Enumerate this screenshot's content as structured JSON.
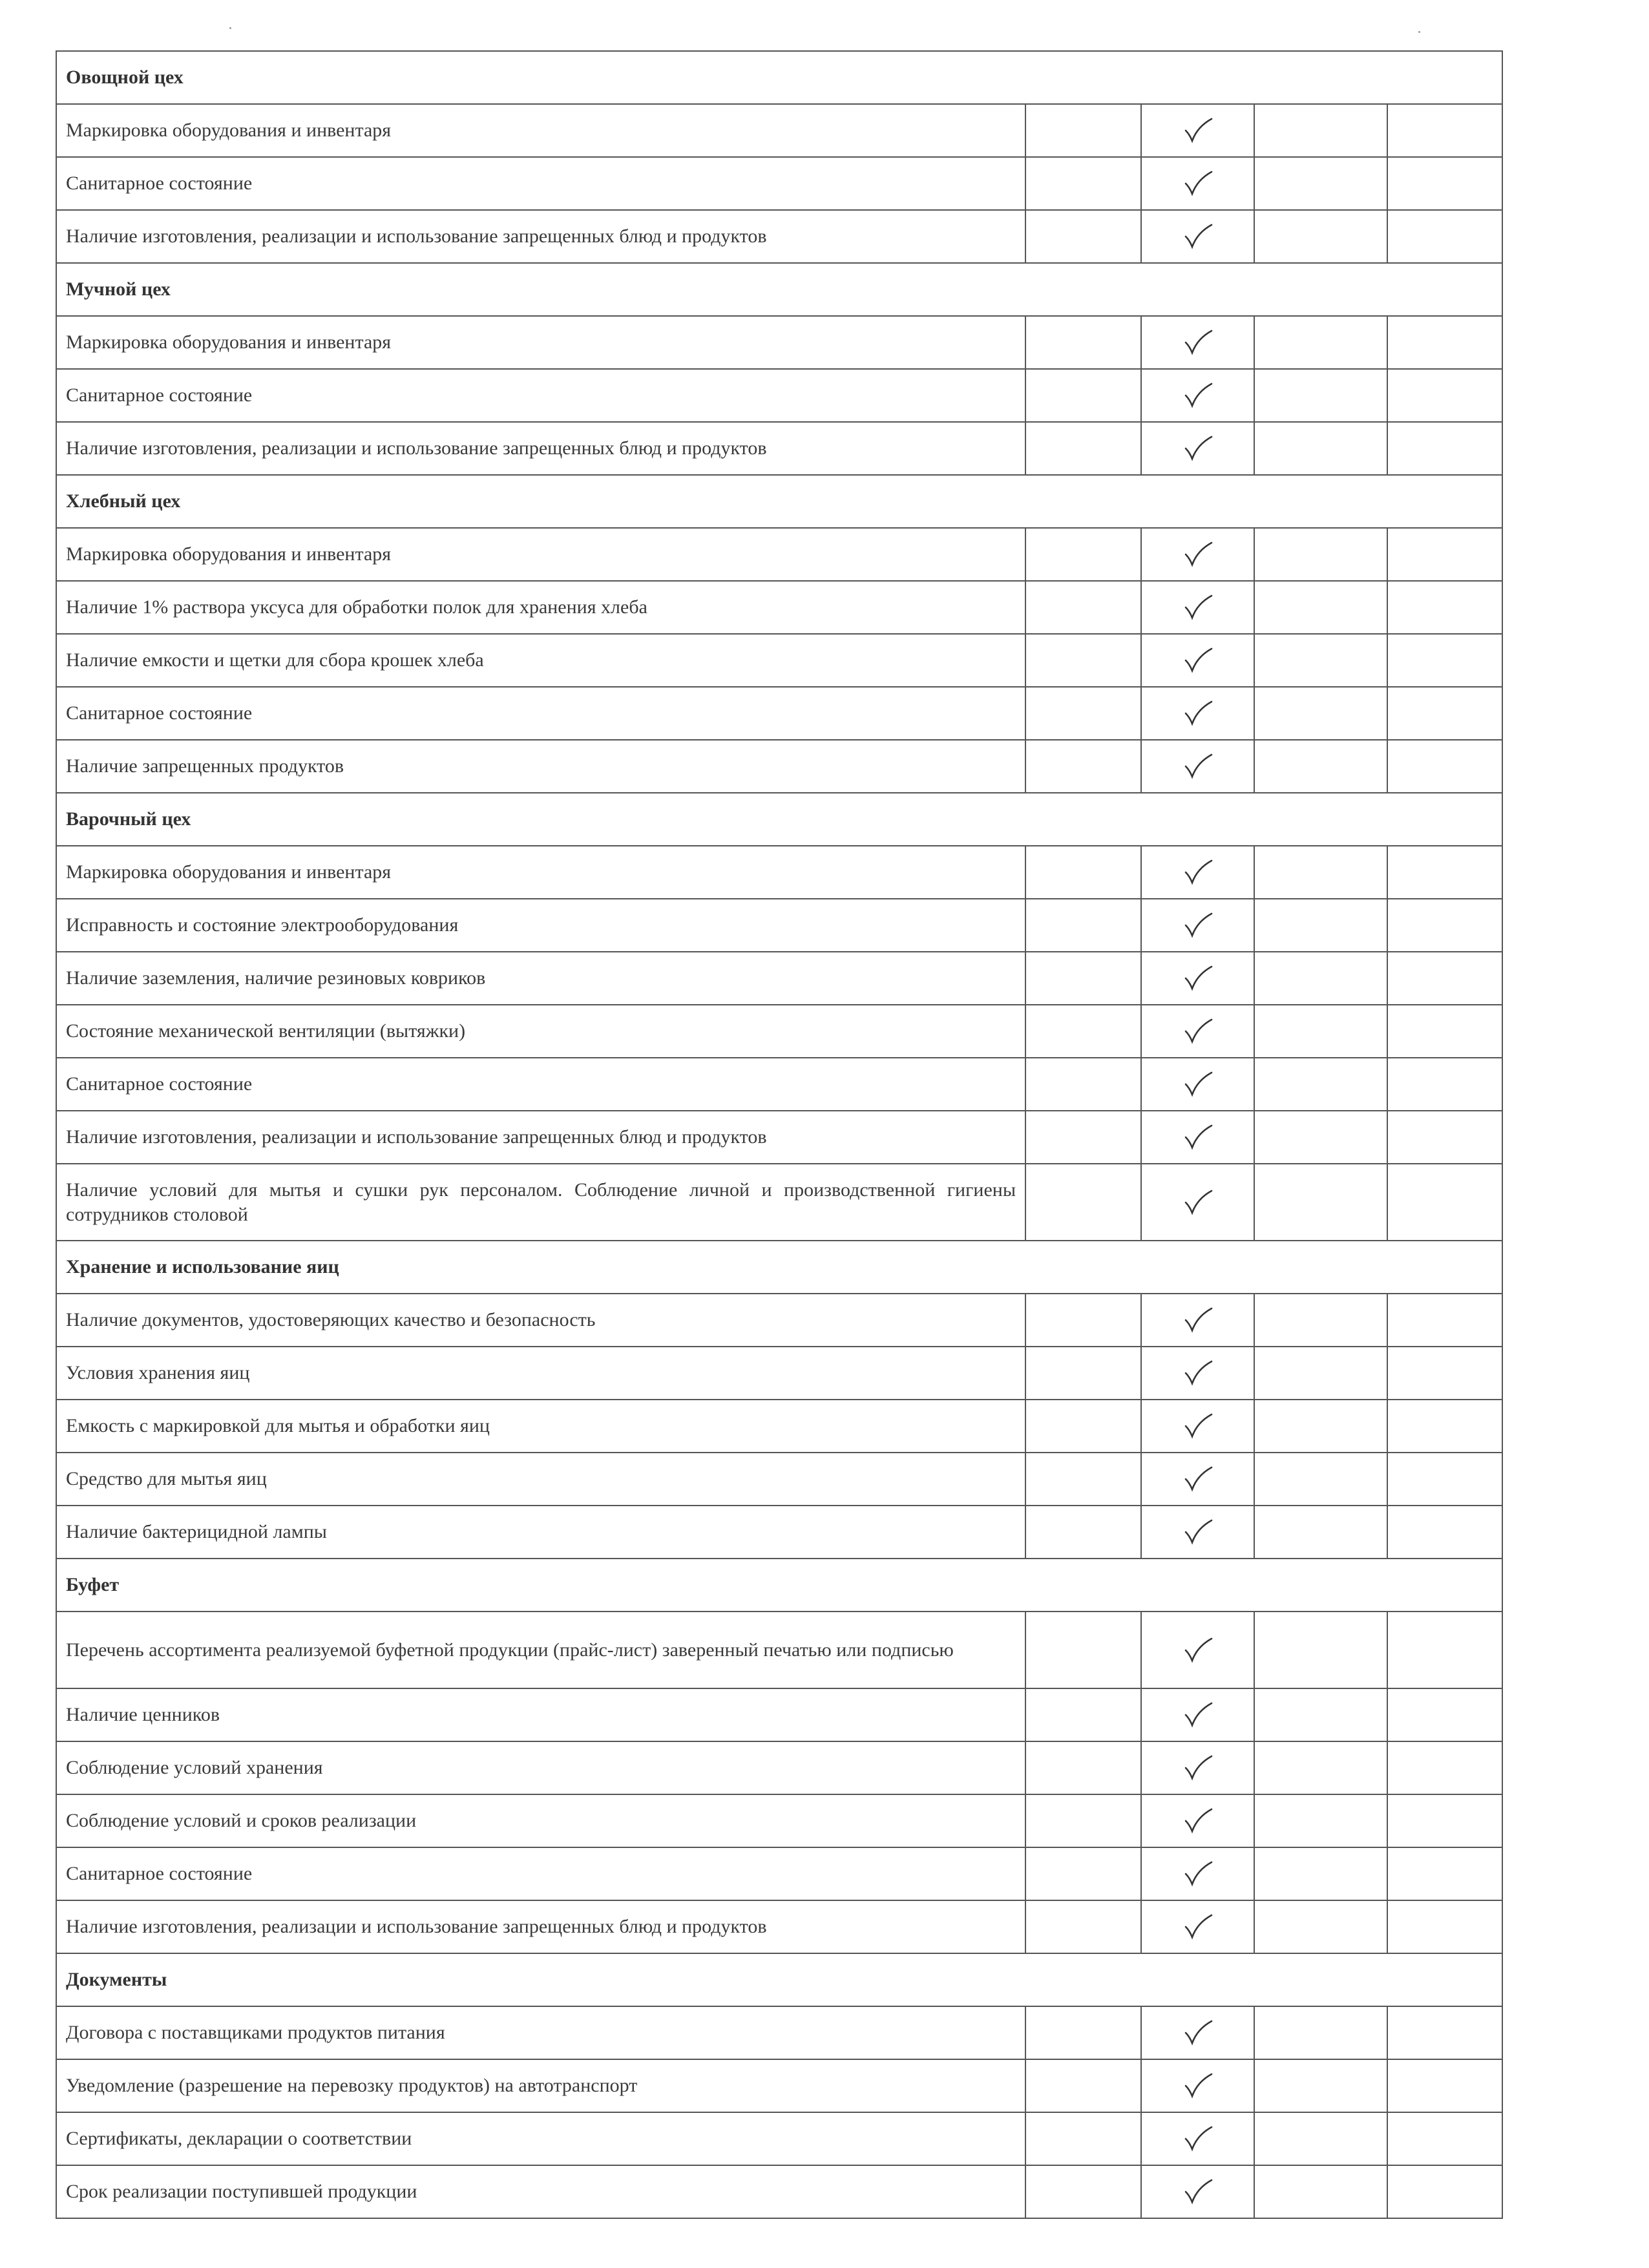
{
  "check_color": "#333333",
  "sections": [
    {
      "title": "Овощной цех",
      "rows": [
        {
          "text": "Маркировка оборудования и инвентаря",
          "checked": true
        },
        {
          "text": "Санитарное состояние",
          "checked": true
        },
        {
          "text": "Наличие изготовления, реализации и использование запрещенных  блюд и продуктов",
          "checked": true
        }
      ]
    },
    {
      "title": "Мучной цех",
      "rows": [
        {
          "text": "Маркировка оборудования и инвентаря",
          "checked": true
        },
        {
          "text": "Санитарное состояние",
          "checked": true
        },
        {
          "text": "Наличие изготовления, реализации и использование запрещенных  блюд и продуктов",
          "checked": true
        }
      ]
    },
    {
      "title": "Хлебный цех",
      "rows": [
        {
          "text": "Маркировка оборудования и инвентаря",
          "checked": true
        },
        {
          "text": "Наличие 1% раствора уксуса для обработки полок для хранения хлеба",
          "checked": true
        },
        {
          "text": "Наличие емкости и щетки для сбора крошек хлеба",
          "checked": true
        },
        {
          "text": "Санитарное состояние",
          "checked": true
        },
        {
          "text": "Наличие запрещенных продуктов",
          "checked": true
        }
      ]
    },
    {
      "title": "Варочный цех",
      "rows": [
        {
          "text": "Маркировка оборудования и инвентаря",
          "checked": true
        },
        {
          "text": "Исправность и состояние электрооборудования",
          "checked": true
        },
        {
          "text": "Наличие заземления, наличие резиновых  ковриков",
          "checked": true
        },
        {
          "text": "Состояние механической вентиляции (вытяжки)",
          "checked": true
        },
        {
          "text": "Санитарное состояние",
          "checked": true
        },
        {
          "text": "Наличие изготовления, реализации и использование запрещенных  блюд и продуктов",
          "checked": true
        },
        {
          "text": "Наличие условий для мытья и сушки рук персоналом. Соблюдение личной и производственной гигиены сотрудников столовой",
          "checked": true,
          "tall": true
        }
      ]
    },
    {
      "title": "Хранение и использование яиц",
      "rows": [
        {
          "text": "Наличие документов, удостоверяющих качество и безопасность",
          "checked": true
        },
        {
          "text": "Условия хранения яиц",
          "checked": true
        },
        {
          "text": "Емкость с маркировкой для мытья и обработки  яиц",
          "checked": true
        },
        {
          "text": "Средство для мытья яиц",
          "checked": true
        },
        {
          "text": "Наличие бактерицидной лампы",
          "checked": true
        }
      ]
    },
    {
      "title": "Буфет",
      "rows": [
        {
          "text": "Перечень ассортимента реализуемой буфетной продукции (прайс-лист) заверенный печатью или подписью",
          "checked": true,
          "tall": true
        },
        {
          "text": "Наличие ценников",
          "checked": true
        },
        {
          "text": "Соблюдение условий хранения",
          "checked": true
        },
        {
          "text": "Соблюдение условий и сроков  реализации",
          "checked": true
        },
        {
          "text": "Санитарное состояние",
          "checked": true
        },
        {
          "text": "Наличие изготовления, реализации и использование запрещенных  блюд и продуктов",
          "checked": true
        }
      ]
    },
    {
      "title": "Документы",
      "rows": [
        {
          "text": "Договора с поставщиками продуктов питания",
          "checked": true
        },
        {
          "text": "Уведомление (разрешение на перевозку продуктов) на автотранспорт",
          "checked": true
        },
        {
          "text": "Сертификаты, декларации о соответствии",
          "checked": true
        },
        {
          "text": "Срок реализации поступившей продукции",
          "checked": true
        }
      ]
    }
  ]
}
